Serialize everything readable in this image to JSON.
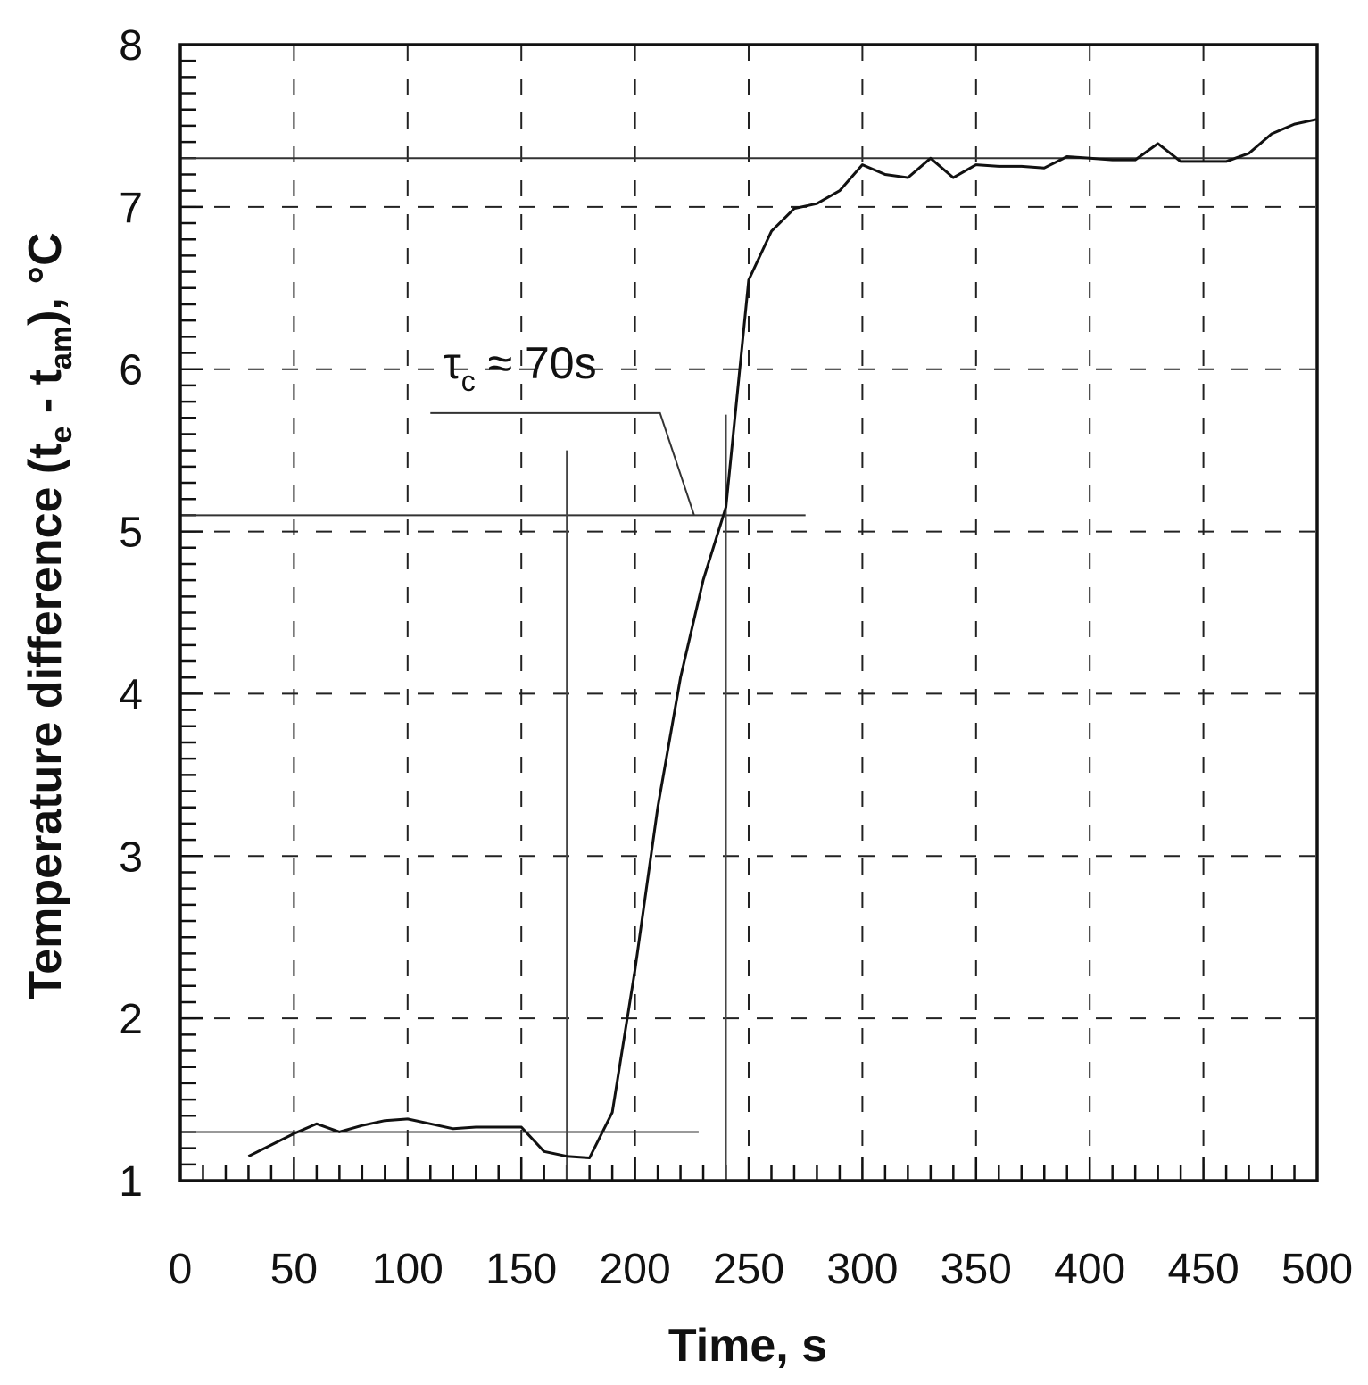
{
  "chart_data": {
    "type": "line",
    "xlabel": "Time, s",
    "ylabel": {
      "prefix": "Temperature difference (t",
      "sub1": "e",
      "middle": " - t",
      "sub2": "am",
      "suffix": "), °C"
    },
    "xlim": [
      0,
      500
    ],
    "ylim": [
      1,
      8
    ],
    "xticks": [
      0,
      50,
      100,
      150,
      200,
      250,
      300,
      350,
      400,
      450,
      500
    ],
    "yticks": [
      1,
      2,
      3,
      4,
      5,
      6,
      7,
      8
    ],
    "grid": true,
    "grid_style": "dashed",
    "series": [
      {
        "x": [
          30,
          40,
          50,
          60,
          70,
          80,
          90,
          100,
          110,
          120,
          130,
          140,
          150,
          160,
          170,
          180,
          190,
          200,
          210,
          220,
          230,
          240,
          250,
          260,
          270,
          280,
          290,
          300,
          310,
          320,
          330,
          340,
          350,
          360,
          370,
          380,
          390,
          400,
          410,
          420,
          430,
          440,
          450,
          460,
          470,
          480,
          490,
          500
        ],
        "y": [
          1.15,
          1.22,
          1.29,
          1.35,
          1.3,
          1.34,
          1.37,
          1.38,
          1.35,
          1.32,
          1.33,
          1.33,
          1.33,
          1.18,
          1.15,
          1.14,
          1.42,
          2.3,
          3.3,
          4.1,
          4.7,
          5.15,
          6.55,
          6.85,
          6.99,
          7.02,
          7.1,
          7.26,
          7.2,
          7.18,
          7.3,
          7.18,
          7.26,
          7.25,
          7.25,
          7.24,
          7.31,
          7.3,
          7.29,
          7.29,
          7.39,
          7.28,
          7.28,
          7.28,
          7.33,
          7.45,
          7.51,
          7.54
        ]
      }
    ],
    "annotations": {
      "tau_label": {
        "tau": "τ",
        "sub": "c",
        "text": " ≈ 70s"
      },
      "reference_lines": [
        {
          "type": "horizontal",
          "y": 7.3,
          "x_start": 0,
          "x_end": 500
        },
        {
          "type": "horizontal",
          "y": 5.1,
          "x_start": 0,
          "x_end": 275
        },
        {
          "type": "horizontal",
          "y": 1.3,
          "x_start": 0,
          "x_end": 228
        },
        {
          "type": "vertical",
          "x": 170,
          "y_start": 1,
          "y_end": 5.5
        },
        {
          "type": "vertical",
          "x": 240,
          "y_start": 1,
          "y_end": 5.72
        }
      ],
      "leader_points": [
        [
          110,
          5.73
        ],
        [
          211,
          5.73
        ],
        [
          226,
          5.1
        ]
      ]
    }
  }
}
